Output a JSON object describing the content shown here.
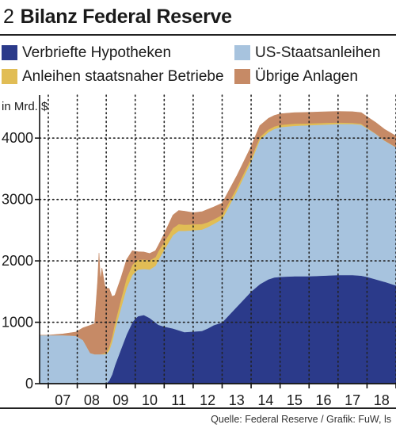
{
  "header": {
    "number": "2",
    "title": "Bilanz Federal Reserve"
  },
  "source": "Quelle: Federal Reserve / Grafik: FuW, ls",
  "colors": {
    "mbs": "#2b3a8a",
    "treasuries": "#a7c3de",
    "agency": "#e1bd55",
    "other": "#c68a66",
    "grid": "#222222",
    "axis": "#111111"
  },
  "chart_data": {
    "type": "area",
    "stacked": true,
    "ylabel": "in Mrd. $",
    "ylim": [
      0,
      4700
    ],
    "yticks": [
      0,
      1000,
      2000,
      3000,
      4000
    ],
    "xlim": [
      2006.7,
      2019.0
    ],
    "xtick_labels": [
      "07",
      "08",
      "09",
      "10",
      "11",
      "12",
      "13",
      "14",
      "15",
      "16",
      "17",
      "18"
    ],
    "grid": "vertical dotted lines at year boundaries, horizontal dotted lines at y ticks",
    "legend": [
      {
        "label": "Verbriefte Hypotheken",
        "key": "mbs"
      },
      {
        "label": "US-Staatsanleihen",
        "key": "treasuries"
      },
      {
        "label": "Anleihen staatsnaher Betriebe",
        "key": "agency"
      },
      {
        "label": "Übrige Anlagen",
        "key": "other"
      }
    ],
    "x": [
      2006.7,
      2007.0,
      2007.5,
      2007.95,
      2008.2,
      2008.45,
      2008.6,
      2008.7,
      2008.75,
      2008.8,
      2008.85,
      2008.9,
      2008.95,
      2009.0,
      2009.1,
      2009.2,
      2009.3,
      2009.5,
      2009.7,
      2009.9,
      2010.0,
      2010.1,
      2010.3,
      2010.5,
      2010.7,
      2010.8,
      2011.0,
      2011.3,
      2011.5,
      2011.7,
      2012.0,
      2012.3,
      2012.5,
      2012.7,
      2013.0,
      2013.5,
      2014.0,
      2014.3,
      2014.6,
      2014.8,
      2015.0,
      2015.5,
      2016.0,
      2016.5,
      2017.0,
      2017.5,
      2017.8,
      2018.0,
      2018.3,
      2018.6,
      2019.0
    ],
    "series": [
      {
        "name": "Verbriefte Hypotheken",
        "key": "mbs",
        "values": [
          0,
          0,
          0,
          0,
          0,
          0,
          0,
          0,
          0,
          0,
          0,
          0,
          0,
          0,
          50,
          150,
          300,
          550,
          800,
          1000,
          1060,
          1100,
          1120,
          1070,
          1000,
          960,
          930,
          900,
          870,
          840,
          850,
          860,
          900,
          950,
          1000,
          1250,
          1500,
          1620,
          1700,
          1730,
          1740,
          1750,
          1750,
          1760,
          1770,
          1770,
          1760,
          1740,
          1700,
          1660,
          1600
        ]
      },
      {
        "name": "US-Staatsanleihen",
        "key": "treasuries",
        "values": [
          790,
          790,
          790,
          780,
          710,
          500,
          480,
          480,
          480,
          480,
          480,
          480,
          480,
          480,
          490,
          530,
          580,
          670,
          760,
          770,
          760,
          760,
          750,
          790,
          920,
          1060,
          1250,
          1520,
          1620,
          1650,
          1650,
          1650,
          1650,
          1650,
          1680,
          1880,
          2120,
          2350,
          2400,
          2420,
          2440,
          2450,
          2460,
          2460,
          2460,
          2460,
          2460,
          2420,
          2370,
          2300,
          2250
        ]
      },
      {
        "name": "Anleihen staatsnaher Betriebe",
        "key": "agency",
        "values": [
          0,
          0,
          0,
          0,
          0,
          0,
          0,
          0,
          0,
          0,
          5,
          10,
          20,
          30,
          60,
          90,
          110,
          140,
          160,
          165,
          165,
          160,
          155,
          150,
          145,
          140,
          130,
          115,
          110,
          100,
          95,
          90,
          80,
          75,
          70,
          60,
          55,
          48,
          42,
          40,
          37,
          35,
          30,
          28,
          25,
          20,
          15,
          10,
          5,
          5,
          4
        ]
      },
      {
        "name": "Übrige Anlagen",
        "key": "other",
        "values": [
          0,
          0,
          20,
          60,
          200,
          450,
          500,
          1180,
          1650,
          1200,
          1400,
          1250,
          1100,
          1050,
          950,
          650,
          450,
          350,
          300,
          230,
          170,
          130,
          120,
          110,
          100,
          95,
          130,
          210,
          220,
          220,
          190,
          200,
          210,
          200,
          190,
          190,
          190,
          185,
          180,
          180,
          180,
          180,
          180,
          180,
          180,
          180,
          180,
          180,
          180,
          180,
          180
        ]
      }
    ]
  }
}
